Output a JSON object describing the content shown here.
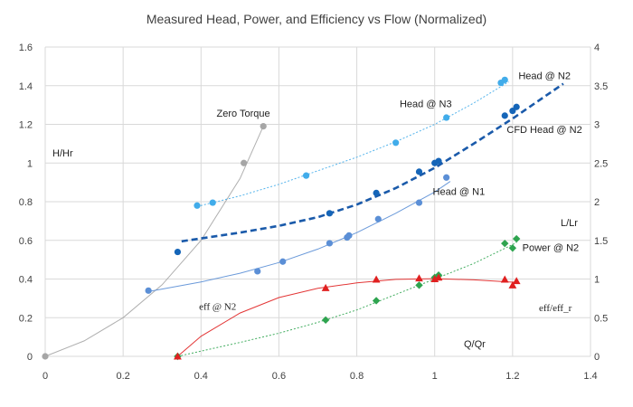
{
  "chart_data": {
    "type": "scatter",
    "title": "Measured Head, Power, and Efficiency vs Flow (Normalized)",
    "xlim": [
      0,
      1.4
    ],
    "ylim": [
      0,
      1.6
    ],
    "y2lim": [
      0,
      4
    ],
    "x_ticks": [
      "0",
      "0.2",
      "0.4",
      "0.6",
      "0.8",
      "1",
      "1.2",
      "1.4"
    ],
    "y_ticks": [
      "0",
      "0.2",
      "0.4",
      "0.6",
      "0.8",
      "1",
      "1.2",
      "1.4",
      "1.6"
    ],
    "y2_ticks": [
      "0",
      "0.5",
      "1",
      "1.5",
      "2",
      "2.5",
      "3",
      "3.5",
      "4"
    ],
    "grid": true,
    "axis_annotations": {
      "h_hr": "H/Hr",
      "l_lr": "L/Lr",
      "q_qr": "Q/Qr",
      "eff_ratio": "eff/eff_r"
    },
    "series": [
      {
        "name": "Zero Torque",
        "color": "#a6a6a6",
        "marker": "circle",
        "axis": "left",
        "x": [
          0,
          0.51,
          0.56
        ],
        "y": [
          0,
          1.0,
          1.19
        ],
        "trend": [
          [
            0,
            0
          ],
          [
            0.1,
            0.08
          ],
          [
            0.2,
            0.2
          ],
          [
            0.3,
            0.37
          ],
          [
            0.4,
            0.6
          ],
          [
            0.5,
            0.92
          ],
          [
            0.56,
            1.19
          ]
        ]
      },
      {
        "name": "Head @ N3",
        "color": "#41acea",
        "marker": "circle",
        "axis": "left",
        "x": [
          0.39,
          0.43,
          0.67,
          0.9,
          1.03,
          1.17,
          1.18
        ],
        "y": [
          0.78,
          0.795,
          0.935,
          1.105,
          1.235,
          1.415,
          1.43
        ],
        "trend": [
          [
            0.39,
            0.775
          ],
          [
            0.5,
            0.83
          ],
          [
            0.6,
            0.89
          ],
          [
            0.7,
            0.96
          ],
          [
            0.8,
            1.03
          ],
          [
            0.9,
            1.11
          ],
          [
            1.0,
            1.2
          ],
          [
            1.1,
            1.31
          ],
          [
            1.19,
            1.42
          ]
        ]
      },
      {
        "name": "Head @ N1",
        "color": "#5b8fd6",
        "marker": "circle",
        "axis": "left",
        "x": [
          0.265,
          0.545,
          0.61,
          0.73,
          0.775,
          0.78,
          0.855,
          0.96,
          1.03
        ],
        "y": [
          0.34,
          0.44,
          0.49,
          0.585,
          0.615,
          0.625,
          0.71,
          0.795,
          0.925
        ],
        "trend": [
          [
            0.265,
            0.335
          ],
          [
            0.4,
            0.385
          ],
          [
            0.5,
            0.43
          ],
          [
            0.6,
            0.485
          ],
          [
            0.7,
            0.555
          ],
          [
            0.8,
            0.64
          ],
          [
            0.9,
            0.74
          ],
          [
            1.0,
            0.85
          ],
          [
            1.04,
            0.905
          ]
        ]
      },
      {
        "name": "Head @ N2",
        "color": "#1565b8",
        "marker": "circle",
        "axis": "left",
        "x": [
          0.34,
          0.73,
          0.85,
          0.96,
          1.0,
          1.01,
          1.18,
          1.2,
          1.21
        ],
        "y": [
          0.54,
          0.74,
          0.845,
          0.955,
          1.0,
          1.01,
          1.245,
          1.27,
          1.29
        ],
        "trend": null
      },
      {
        "name": "CFD Head @ N2",
        "color": "#1a5aaa",
        "marker": "dash",
        "axis": "left",
        "x": [
          0.35,
          0.5,
          0.6,
          0.7,
          0.8,
          0.9,
          1.0,
          1.1,
          1.2,
          1.33
        ],
        "y": [
          0.595,
          0.64,
          0.675,
          0.72,
          0.785,
          0.87,
          0.975,
          1.1,
          1.23,
          1.41
        ],
        "trend": null
      },
      {
        "name": "Power @ N2",
        "color": "#2ea44f",
        "marker": "diamond",
        "axis": "right",
        "x": [
          0.34,
          0.72,
          0.85,
          0.96,
          1.0,
          1.01,
          1.18,
          1.2,
          1.21
        ],
        "y": [
          0.0,
          0.47,
          0.72,
          0.92,
          1.02,
          1.05,
          1.46,
          1.4,
          1.52
        ],
        "trend": [
          [
            0.34,
            0.0
          ],
          [
            0.5,
            0.18
          ],
          [
            0.6,
            0.3
          ],
          [
            0.7,
            0.44
          ],
          [
            0.8,
            0.6
          ],
          [
            0.9,
            0.8
          ],
          [
            1.0,
            1.0
          ],
          [
            1.1,
            1.2
          ],
          [
            1.21,
            1.47
          ]
        ]
      },
      {
        "name": "eff @ N2",
        "color": "#e02020",
        "marker": "triangle",
        "axis": "right",
        "x": [
          0.34,
          0.72,
          0.85,
          0.96,
          1.0,
          1.01,
          1.18,
          1.2,
          1.21
        ],
        "y": [
          0.0,
          0.885,
          0.995,
          1.01,
          1.0,
          1.02,
          0.995,
          0.92,
          0.975
        ],
        "trend": [
          [
            0.34,
            0.0
          ],
          [
            0.4,
            0.26
          ],
          [
            0.5,
            0.56
          ],
          [
            0.6,
            0.76
          ],
          [
            0.7,
            0.88
          ],
          [
            0.8,
            0.95
          ],
          [
            0.9,
            0.995
          ],
          [
            1.0,
            1.005
          ],
          [
            1.1,
            0.99
          ],
          [
            1.21,
            0.955
          ]
        ]
      }
    ],
    "labels": [
      {
        "text": "Zero Torque",
        "x": 0.44,
        "y": 1.24,
        "style": "sans"
      },
      {
        "text": "Head @ N3",
        "x": 0.91,
        "y": 1.29,
        "style": "sans"
      },
      {
        "text": "Head @ N2",
        "x": 1.215,
        "y": 1.435,
        "style": "sans"
      },
      {
        "text": "CFD Head @ N2",
        "x": 1.185,
        "y": 1.155,
        "style": "sans"
      },
      {
        "text": "Head @ N1",
        "x": 0.995,
        "y": 0.835,
        "style": "sans"
      },
      {
        "text": "Power @ N2",
        "x": 1.225,
        "y": 0.545,
        "style": "sans"
      },
      {
        "text": "eff @ N2",
        "x": 0.395,
        "y": 0.24,
        "style": "serif"
      }
    ]
  }
}
